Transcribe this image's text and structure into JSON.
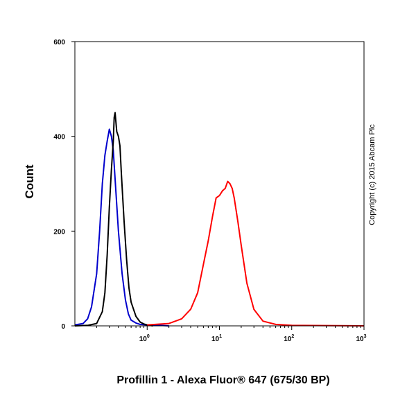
{
  "chart_data": {
    "type": "line",
    "xlabel": "Profillin 1 - Alexa Fluor® 647 (675/30 BP)",
    "ylabel": "Count",
    "xscale": "log",
    "xlim": [
      0.1,
      1000
    ],
    "ylim": [
      0,
      600
    ],
    "y_ticks": [
      "0",
      "200",
      "400",
      "600"
    ],
    "x_ticks": [
      {
        "base": "10",
        "exp": "0",
        "value": 1
      },
      {
        "base": "10",
        "exp": "1",
        "value": 10
      },
      {
        "base": "10",
        "exp": "2",
        "value": 100
      },
      {
        "base": "10",
        "exp": "3",
        "value": 1000
      }
    ],
    "annotation": "Copyright (c) 2015 Abcam Plc",
    "series": [
      {
        "color": "#0000cc",
        "x": [
          0.1,
          0.13,
          0.15,
          0.17,
          0.2,
          0.22,
          0.24,
          0.26,
          0.28,
          0.3,
          0.32,
          0.34,
          0.36,
          0.4,
          0.45,
          0.5,
          0.55,
          0.6,
          0.7,
          0.8,
          1.0,
          1.5,
          2.0
        ],
        "y": [
          2,
          5,
          15,
          40,
          110,
          200,
          300,
          360,
          390,
          415,
          400,
          370,
          310,
          200,
          110,
          55,
          25,
          12,
          6,
          3,
          2,
          1,
          0
        ]
      },
      {
        "color": "#000000",
        "x": [
          0.1,
          0.15,
          0.2,
          0.24,
          0.26,
          0.28,
          0.3,
          0.32,
          0.34,
          0.35,
          0.36,
          0.38,
          0.4,
          0.42,
          0.44,
          0.48,
          0.52,
          0.56,
          0.6,
          0.7,
          0.8,
          0.9,
          1.0,
          1.2
        ],
        "y": [
          0,
          1,
          5,
          30,
          70,
          150,
          250,
          330,
          390,
          440,
          450,
          410,
          400,
          380,
          320,
          220,
          140,
          80,
          50,
          20,
          8,
          4,
          2,
          0
        ]
      },
      {
        "color": "#ff0000",
        "x": [
          1.0,
          2.0,
          3.0,
          4.0,
          5.0,
          6.0,
          7.0,
          8.0,
          9.0,
          10.0,
          11.0,
          12.0,
          13.0,
          14.0,
          15.0,
          16.0,
          18.0,
          20.0,
          24.0,
          30.0,
          40.0,
          60.0,
          100.0,
          1000.0
        ],
        "y": [
          2,
          5,
          15,
          35,
          70,
          130,
          180,
          230,
          270,
          275,
          285,
          290,
          305,
          300,
          290,
          270,
          220,
          170,
          90,
          35,
          10,
          3,
          1,
          0
        ]
      }
    ]
  }
}
